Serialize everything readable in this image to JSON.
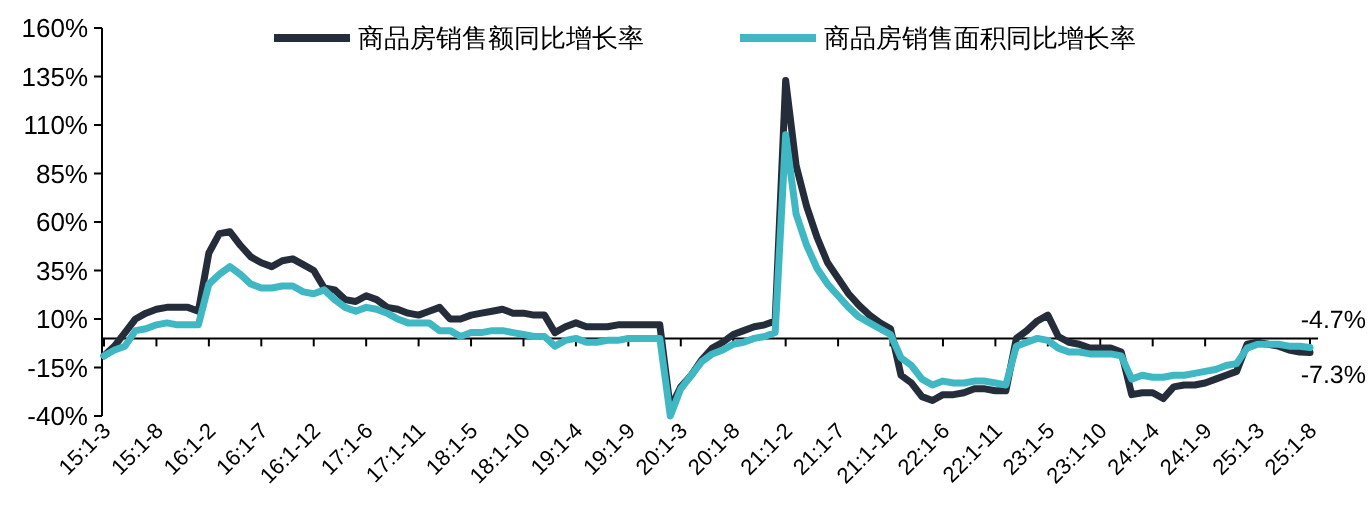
{
  "chart_data": {
    "type": "line",
    "legend": "top",
    "categories": [
      "15:1-3",
      null,
      null,
      null,
      null,
      "15:1-8",
      null,
      null,
      null,
      null,
      "16:1-2",
      null,
      null,
      null,
      null,
      "16:1-7",
      null,
      null,
      null,
      null,
      "16:1-12",
      null,
      null,
      null,
      null,
      "17:1-6",
      null,
      null,
      null,
      null,
      "17:1-11",
      null,
      null,
      null,
      null,
      "18:1-5",
      null,
      null,
      null,
      null,
      "18:1-10",
      null,
      null,
      null,
      null,
      "19:1-4",
      null,
      null,
      null,
      null,
      "19:1-9",
      null,
      null,
      null,
      null,
      "20:1-3",
      null,
      null,
      null,
      null,
      "20:1-8",
      null,
      null,
      null,
      null,
      "21:1-2",
      null,
      null,
      null,
      null,
      "21:1-7",
      null,
      null,
      null,
      null,
      "21:1-12",
      null,
      null,
      null,
      null,
      "22:1-6",
      null,
      null,
      null,
      null,
      "22:1-11",
      null,
      null,
      null,
      null,
      "23:1-5",
      null,
      null,
      null,
      null,
      "23:1-10",
      null,
      null,
      null,
      null,
      "24:1-4",
      null,
      null,
      null,
      null,
      "24:1-9",
      null,
      null,
      null,
      null,
      "25:1-3",
      null,
      null,
      null,
      null,
      "25:1-8"
    ],
    "ylim": [
      -40,
      160
    ],
    "yticks": [
      {
        "value": -40,
        "label": "-40%"
      },
      {
        "value": -15,
        "label": "-15%"
      },
      {
        "value": 10,
        "label": "10%"
      },
      {
        "value": 35,
        "label": "35%"
      },
      {
        "value": 60,
        "label": "60%"
      },
      {
        "value": 85,
        "label": "85%"
      },
      {
        "value": 110,
        "label": "110%"
      },
      {
        "value": 135,
        "label": "135%"
      },
      {
        "value": 160,
        "label": "160%"
      }
    ],
    "series": [
      {
        "name": "商品房销售额同比增长率",
        "color": "#252d3a",
        "values": [
          -9,
          -4,
          3,
          10,
          13,
          15,
          16,
          16,
          16,
          14,
          44,
          54,
          55,
          48,
          42,
          39,
          37,
          40,
          41,
          38,
          35,
          26,
          25,
          20,
          19,
          22,
          20,
          16,
          15,
          13,
          12,
          14,
          16,
          10,
          10,
          12,
          13,
          14,
          15,
          13,
          13,
          12,
          12,
          3,
          6,
          8,
          6,
          6,
          6,
          7,
          7,
          7,
          7,
          7,
          -36,
          -25,
          -19,
          -11,
          -5,
          -2,
          2,
          4,
          6,
          7,
          9,
          133,
          89,
          68,
          52,
          39,
          31,
          23,
          17,
          12,
          8,
          5,
          -19,
          -23,
          -30,
          -32,
          -29,
          -29,
          -28,
          -26,
          -26,
          -27,
          -27,
          0,
          4,
          9,
          12,
          1,
          -2,
          -3,
          -5,
          -5,
          -5,
          -7,
          -29,
          -28,
          -28,
          -31,
          -25,
          -24,
          -24,
          -23,
          -21,
          -19,
          -17,
          -3,
          -2,
          -3,
          -4,
          -6,
          -7,
          -7.3
        ]
      },
      {
        "name": "商品房销售面积同比增长率",
        "color": "#3fb8c4",
        "values": [
          -9,
          -6,
          -4,
          4,
          5,
          7,
          8,
          7,
          7,
          7,
          28,
          33,
          37,
          33,
          28,
          26,
          26,
          27,
          27,
          24,
          23,
          25,
          20,
          16,
          14,
          16,
          15,
          13,
          10,
          8,
          8,
          8,
          4,
          4,
          1,
          3,
          3,
          4,
          4,
          3,
          2,
          1,
          1,
          -4,
          -1,
          0,
          -2,
          -2,
          -1,
          -1,
          0,
          0,
          0,
          0,
          -40,
          -26,
          -19,
          -12,
          -8,
          -6,
          -3,
          -2,
          0,
          1,
          3,
          105,
          64,
          48,
          36,
          28,
          22,
          16,
          11,
          8,
          5,
          2,
          -10,
          -14,
          -21,
          -24,
          -22,
          -23,
          -23,
          -22,
          -22,
          -23,
          -24,
          -4,
          -2,
          0,
          -1,
          -5,
          -7,
          -7,
          -8,
          -8,
          -8,
          -9,
          -21,
          -19,
          -20,
          -20,
          -19,
          -19,
          -18,
          -17,
          -16,
          -14,
          -13,
          -5,
          -3,
          -3,
          -3,
          -4,
          -4,
          -4.7
        ]
      }
    ],
    "annotations": [
      {
        "text": "-4.7%",
        "x": "25:1-8",
        "y": -4.7
      },
      {
        "text": "-7.3%",
        "x": "25:1-8",
        "y": -7.3
      }
    ]
  }
}
